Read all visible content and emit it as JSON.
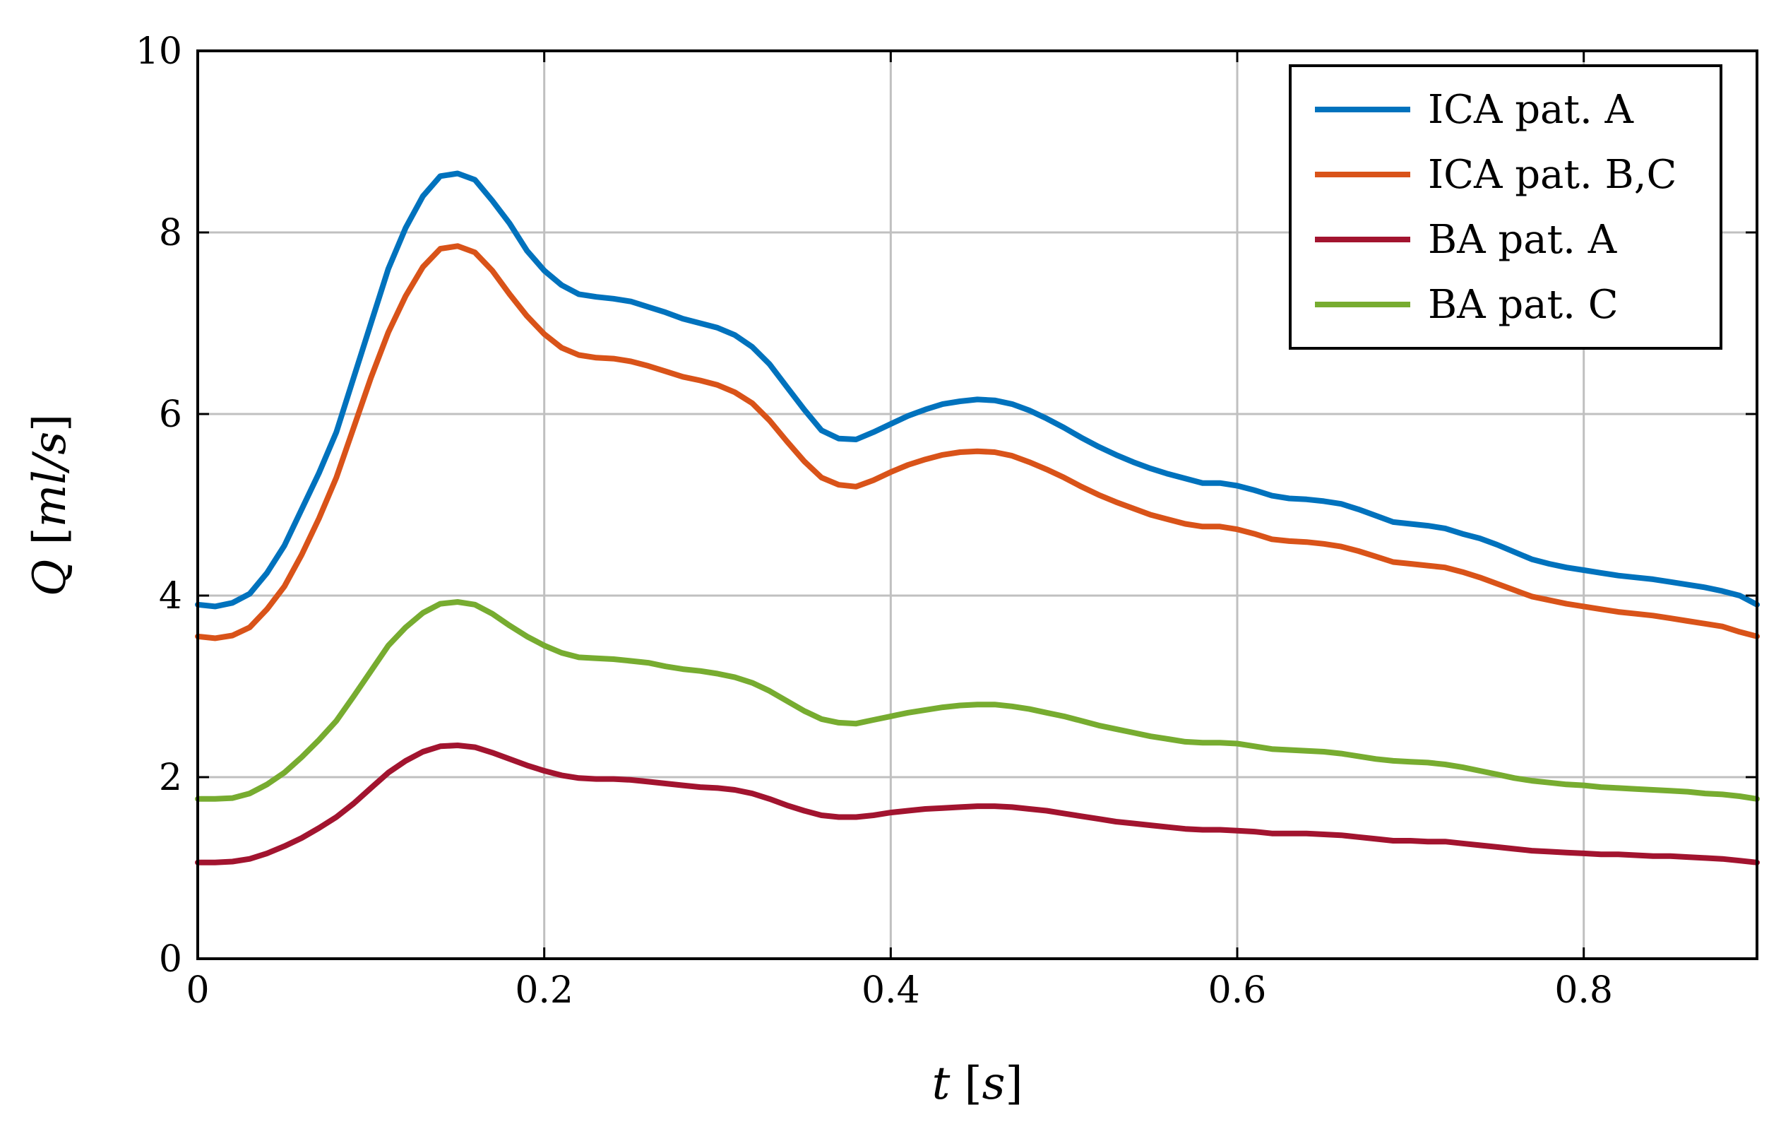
{
  "chart_data": {
    "type": "line",
    "xlabel": {
      "var": "t",
      "unit": "s"
    },
    "ylabel": {
      "var": "Q",
      "unit": "ml/s"
    },
    "xlim": [
      0,
      0.9
    ],
    "ylim": [
      0,
      10
    ],
    "xticks": [
      0,
      0.2,
      0.4,
      0.6,
      0.8
    ],
    "yticks": [
      0,
      2,
      4,
      6,
      8,
      10
    ],
    "x_tick_labels": [
      "0",
      "0.2",
      "0.4",
      "0.6",
      "0.8"
    ],
    "y_tick_labels": [
      "0",
      "2",
      "4",
      "6",
      "8",
      "10"
    ],
    "grid": true,
    "legend_position": "top-right",
    "x": [
      0,
      0.01,
      0.02,
      0.03,
      0.04,
      0.05,
      0.06,
      0.07,
      0.08,
      0.09,
      0.1,
      0.11,
      0.12,
      0.13,
      0.14,
      0.15,
      0.16,
      0.17,
      0.18,
      0.19,
      0.2,
      0.21,
      0.22,
      0.23,
      0.24,
      0.25,
      0.26,
      0.27,
      0.28,
      0.29,
      0.3,
      0.31,
      0.32,
      0.33,
      0.34,
      0.35,
      0.36,
      0.37,
      0.38,
      0.39,
      0.4,
      0.41,
      0.42,
      0.43,
      0.44,
      0.45,
      0.46,
      0.47,
      0.48,
      0.49,
      0.5,
      0.51,
      0.52,
      0.53,
      0.54,
      0.55,
      0.56,
      0.57,
      0.58,
      0.59,
      0.6,
      0.61,
      0.62,
      0.63,
      0.64,
      0.65,
      0.66,
      0.67,
      0.68,
      0.69,
      0.7,
      0.71,
      0.72,
      0.73,
      0.74,
      0.75,
      0.76,
      0.77,
      0.78,
      0.79,
      0.8,
      0.81,
      0.82,
      0.83,
      0.84,
      0.85,
      0.86,
      0.87,
      0.88,
      0.89,
      0.9
    ],
    "series": [
      {
        "name": "ICA pat. A",
        "color": "#0072bd",
        "values": [
          3.9,
          3.88,
          3.92,
          4.02,
          4.25,
          4.55,
          4.95,
          5.35,
          5.8,
          6.4,
          7.0,
          7.6,
          8.05,
          8.4,
          8.62,
          8.65,
          8.58,
          8.35,
          8.1,
          7.8,
          7.58,
          7.42,
          7.32,
          7.29,
          7.27,
          7.24,
          7.18,
          7.12,
          7.05,
          7.0,
          6.95,
          6.87,
          6.74,
          6.55,
          6.3,
          6.05,
          5.82,
          5.73,
          5.72,
          5.8,
          5.89,
          5.98,
          6.05,
          6.11,
          6.14,
          6.16,
          6.15,
          6.11,
          6.04,
          5.95,
          5.85,
          5.74,
          5.64,
          5.55,
          5.47,
          5.4,
          5.34,
          5.29,
          5.24,
          5.24,
          5.21,
          5.16,
          5.1,
          5.07,
          5.06,
          5.04,
          5.01,
          4.95,
          4.88,
          4.81,
          4.79,
          4.77,
          4.74,
          4.68,
          4.63,
          4.56,
          4.48,
          4.4,
          4.35,
          4.31,
          4.28,
          4.25,
          4.22,
          4.2,
          4.18,
          4.15,
          4.12,
          4.09,
          4.05,
          4.0,
          3.9
        ]
      },
      {
        "name": "ICA pat. B,C",
        "color": "#d95319",
        "values": [
          3.55,
          3.53,
          3.56,
          3.65,
          3.85,
          4.1,
          4.45,
          4.85,
          5.3,
          5.85,
          6.4,
          6.9,
          7.3,
          7.62,
          7.82,
          7.85,
          7.78,
          7.58,
          7.32,
          7.08,
          6.88,
          6.73,
          6.65,
          6.62,
          6.61,
          6.58,
          6.53,
          6.47,
          6.41,
          6.37,
          6.32,
          6.24,
          6.12,
          5.93,
          5.7,
          5.48,
          5.3,
          5.22,
          5.2,
          5.27,
          5.36,
          5.44,
          5.5,
          5.55,
          5.58,
          5.59,
          5.58,
          5.54,
          5.47,
          5.39,
          5.3,
          5.2,
          5.11,
          5.03,
          4.96,
          4.89,
          4.84,
          4.79,
          4.76,
          4.76,
          4.73,
          4.68,
          4.62,
          4.6,
          4.59,
          4.57,
          4.54,
          4.49,
          4.43,
          4.37,
          4.35,
          4.33,
          4.31,
          4.26,
          4.2,
          4.13,
          4.06,
          3.99,
          3.95,
          3.91,
          3.88,
          3.85,
          3.82,
          3.8,
          3.78,
          3.75,
          3.72,
          3.69,
          3.66,
          3.6,
          3.55
        ]
      },
      {
        "name": "BA pat. A",
        "color": "#a2142f",
        "values": [
          1.06,
          1.06,
          1.07,
          1.1,
          1.16,
          1.24,
          1.33,
          1.44,
          1.56,
          1.71,
          1.88,
          2.05,
          2.18,
          2.28,
          2.34,
          2.35,
          2.33,
          2.27,
          2.2,
          2.13,
          2.07,
          2.02,
          1.99,
          1.98,
          1.98,
          1.97,
          1.95,
          1.93,
          1.91,
          1.89,
          1.88,
          1.86,
          1.82,
          1.76,
          1.69,
          1.63,
          1.58,
          1.56,
          1.56,
          1.58,
          1.61,
          1.63,
          1.65,
          1.66,
          1.67,
          1.68,
          1.68,
          1.67,
          1.65,
          1.63,
          1.6,
          1.57,
          1.54,
          1.51,
          1.49,
          1.47,
          1.45,
          1.43,
          1.42,
          1.42,
          1.41,
          1.4,
          1.38,
          1.38,
          1.38,
          1.37,
          1.36,
          1.34,
          1.32,
          1.3,
          1.3,
          1.29,
          1.29,
          1.27,
          1.25,
          1.23,
          1.21,
          1.19,
          1.18,
          1.17,
          1.16,
          1.15,
          1.15,
          1.14,
          1.13,
          1.13,
          1.12,
          1.11,
          1.1,
          1.08,
          1.06
        ]
      },
      {
        "name": "BA pat. C",
        "color": "#77ac30",
        "values": [
          1.76,
          1.76,
          1.77,
          1.82,
          1.92,
          2.05,
          2.22,
          2.41,
          2.62,
          2.89,
          3.17,
          3.45,
          3.65,
          3.81,
          3.91,
          3.93,
          3.9,
          3.8,
          3.67,
          3.55,
          3.45,
          3.37,
          3.32,
          3.31,
          3.3,
          3.28,
          3.26,
          3.22,
          3.19,
          3.17,
          3.14,
          3.1,
          3.04,
          2.95,
          2.84,
          2.73,
          2.64,
          2.6,
          2.59,
          2.63,
          2.67,
          2.71,
          2.74,
          2.77,
          2.79,
          2.8,
          2.8,
          2.78,
          2.75,
          2.71,
          2.67,
          2.62,
          2.57,
          2.53,
          2.49,
          2.45,
          2.42,
          2.39,
          2.38,
          2.38,
          2.37,
          2.34,
          2.31,
          2.3,
          2.29,
          2.28,
          2.26,
          2.23,
          2.2,
          2.18,
          2.17,
          2.16,
          2.14,
          2.11,
          2.07,
          2.03,
          1.99,
          1.96,
          1.94,
          1.92,
          1.91,
          1.89,
          1.88,
          1.87,
          1.86,
          1.85,
          1.84,
          1.82,
          1.81,
          1.79,
          1.76
        ]
      }
    ]
  }
}
